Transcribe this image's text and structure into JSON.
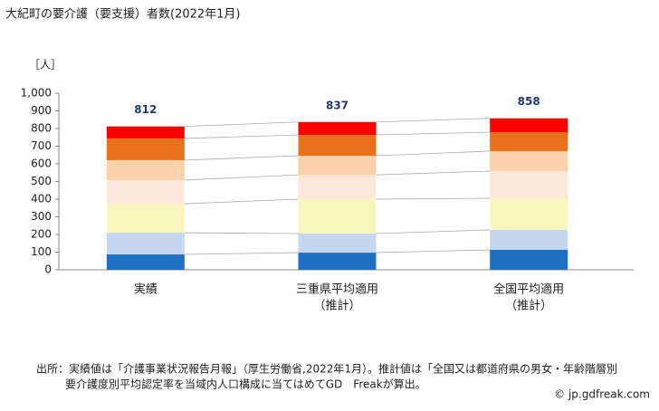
{
  "chart_data": {
    "type": "stacked-bar",
    "title": "大紀町の要介護（要支援）者数(2022年1月)",
    "y_unit": "［人］",
    "categories": [
      "実績",
      "三重県平均適用",
      "全国平均適用"
    ],
    "category_notes": [
      null,
      "（推計）",
      "（推計）"
    ],
    "totals": [
      812,
      837,
      858
    ],
    "series": [
      {
        "color": "#1f6fc5",
        "values": [
          87,
          97,
          113
        ]
      },
      {
        "color": "#c5d6f0",
        "values": [
          123,
          108,
          113
        ]
      },
      {
        "color": "#f7f7bd",
        "values": [
          164,
          195,
          179
        ]
      },
      {
        "color": "#fde6da",
        "values": [
          134,
          138,
          154
        ]
      },
      {
        "color": "#fbd1ab",
        "values": [
          113,
          108,
          113
        ]
      },
      {
        "color": "#e8711a",
        "values": [
          123,
          118,
          107
        ]
      },
      {
        "color": "#ff0000",
        "values": [
          68,
          73,
          79
        ]
      }
    ],
    "ylim": [
      0,
      1000
    ],
    "yticks": [
      0,
      100,
      200,
      300,
      400,
      500,
      600,
      700,
      800,
      900,
      {
        "value": 1000,
        "label": "1,000"
      }
    ],
    "source_lines": [
      "出所：実績値は「介護事業状況報告月報」（厚生労働省,2022年1月）。推計値は「全国又は都道府県の男女・年齢階層別",
      "要介護度別平均認定率を当域内人口構成に当てはめてGD　Freakが算出。"
    ],
    "credit": "© jp.gdfreak.com"
  }
}
